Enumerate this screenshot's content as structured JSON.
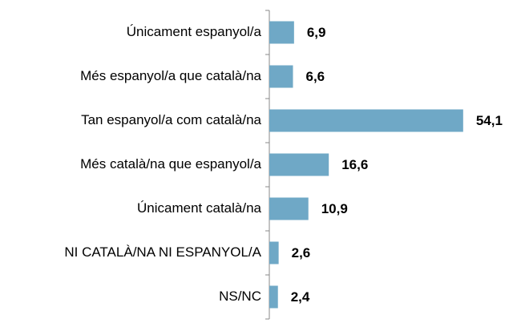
{
  "chart_data": {
    "type": "bar",
    "orientation": "horizontal",
    "categories": [
      "Únicament espanyol/a",
      "Més espanyol/a que català/na",
      "Tan espanyol/a com català/na",
      "Més català/na que espanyol/a",
      "Únicament català/na",
      "NI CATALÀ/NA NI ESPANYOL/A",
      "NS/NC"
    ],
    "values": [
      6.9,
      6.6,
      54.1,
      16.6,
      10.9,
      2.6,
      2.4
    ],
    "value_labels": [
      "6,9",
      "6,6",
      "54,1",
      "16,6",
      "10,9",
      "2,6",
      "2,4"
    ],
    "color": "#6fa8c6"
  }
}
